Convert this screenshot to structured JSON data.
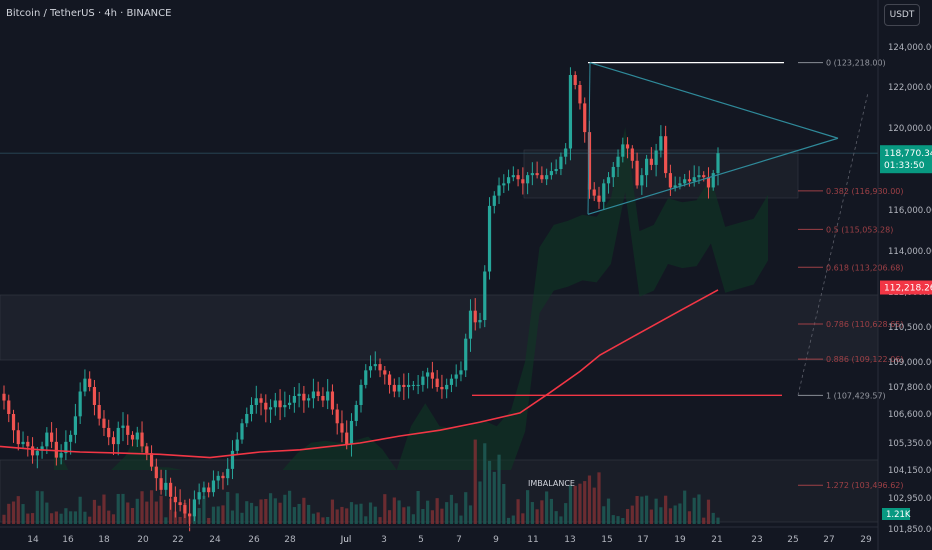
{
  "header": {
    "title": "Bitcoin / TetherUS · 4h · BINANCE",
    "currency": "USDT"
  },
  "colors": {
    "bull": "#26a69a",
    "bear": "#ef5350",
    "ma": "#f23645",
    "teal": "#089981",
    "fib": "#9e4046",
    "background": "#131722",
    "axis_text": "#b2b5be"
  },
  "chart_data": {
    "type": "candlestick",
    "symbol": "Bitcoin / TetherUS",
    "interval": "4h",
    "exchange": "BINANCE",
    "y_axis_ticks": [
      124000,
      122000,
      120000,
      118000,
      116000,
      114000,
      112000,
      110500,
      109000,
      107800,
      106600,
      105350,
      104150,
      102950,
      101850
    ],
    "y_axis_tick_labels": [
      "124,000.00",
      "122,000.00",
      "120,000.00",
      "118,000.00",
      "116,000.00",
      "114,000.00",
      "112,000.00",
      "110,500.00",
      "109,000.00",
      "107,800.00",
      "106,600.00",
      "105,350.00",
      "104,150.00",
      "102,950.00",
      "101,850.00"
    ],
    "x_axis_ticks": [
      "14",
      "16",
      "18",
      "20",
      "22",
      "24",
      "26",
      "28",
      "Jul",
      "3",
      "5",
      "7",
      "9",
      "11",
      "13",
      "15",
      "17",
      "19",
      "21",
      "23",
      "25",
      "27",
      "29"
    ],
    "last_price": {
      "label": "118,770.34",
      "countdown": "01:33:50",
      "value": 118770.34
    },
    "ma_price": {
      "label": "112,218.26",
      "value": 112218.26
    },
    "volume_label": "1.21K",
    "fib_levels": [
      {
        "label": "0 (123,218.00)",
        "value": 123218
      },
      {
        "label": "0.382 (116,930.00)",
        "value": 116930
      },
      {
        "label": "0.5 (115,053.28)",
        "value": 115053.28
      },
      {
        "label": "0.618 (113,206.68)",
        "value": 113206.68
      },
      {
        "label": "0.786 (110,628.65)",
        "value": 110628.65
      },
      {
        "label": "0.886 (109,122.06)",
        "value": 109122.06
      },
      {
        "label": "1 (107,429.57)",
        "value": 107429.57
      },
      {
        "label": "1.272 (103,496.62)",
        "value": 103496.62
      }
    ],
    "annotation": "IMBALANCE",
    "closes": [
      107200,
      106600,
      105900,
      105300,
      105400,
      105200,
      104800,
      105000,
      105200,
      105800,
      105400,
      104700,
      104900,
      105400,
      105700,
      106500,
      107600,
      108200,
      107800,
      107000,
      106400,
      106000,
      105600,
      105300,
      106000,
      106100,
      105700,
      105500,
      105800,
      105200,
      104900,
      104300,
      103800,
      103300,
      103600,
      103000,
      102800,
      102700,
      102400,
      102300,
      102900,
      103200,
      103400,
      103200,
      103700,
      103900,
      103800,
      104200,
      105000,
      105500,
      106200,
      106600,
      107000,
      107300,
      107100,
      106800,
      106900,
      107200,
      106900,
      107000,
      107100,
      107400,
      107500,
      107200,
      107300,
      107600,
      107400,
      107200,
      107600,
      106800,
      106200,
      105800,
      105300,
      106300,
      107000,
      107900,
      108600,
      108800,
      108900,
      108600,
      108400,
      107900,
      107600,
      107900,
      107800,
      107900,
      107900,
      107900,
      108300,
      108500,
      108200,
      107800,
      107700,
      107900,
      108200,
      108400,
      108600,
      110000,
      111200,
      110700,
      110800,
      113000,
      116200,
      116700,
      117200,
      117300,
      117600,
      117700,
      117500,
      117300,
      117700,
      117800,
      117700,
      117500,
      117700,
      117900,
      118000,
      118600,
      119000,
      122600,
      122100,
      121200,
      119800,
      117000,
      116700,
      116400,
      117300,
      117600,
      118100,
      118600,
      119200,
      119000,
      118400,
      117200,
      117700,
      118500,
      118200,
      118900,
      119600,
      117800,
      117100,
      117200,
      117300,
      117500,
      117400,
      117600,
      117700,
      117600,
      117100,
      117800,
      118770.34
    ],
    "ma_series": [
      [
        0,
        105200
      ],
      [
        40,
        105050
      ],
      [
        80,
        104950
      ],
      [
        120,
        104900
      ],
      [
        160,
        104850
      ],
      [
        210,
        104700
      ],
      [
        260,
        104950
      ],
      [
        300,
        105050
      ],
      [
        340,
        105250
      ],
      [
        360,
        105350
      ],
      [
        400,
        105650
      ],
      [
        440,
        105900
      ],
      [
        480,
        106250
      ],
      [
        520,
        106650
      ],
      [
        550,
        107550
      ],
      [
        580,
        108550
      ],
      [
        600,
        109300
      ],
      [
        640,
        110250
      ],
      [
        680,
        111200
      ],
      [
        718,
        112100
      ]
    ],
    "triangle": {
      "apex_value": 119500,
      "upper_start": 123218,
      "lower_start": 115400
    },
    "horizontal_lines": [
      {
        "value": 123218
      },
      {
        "value": 107429.57
      }
    ]
  }
}
